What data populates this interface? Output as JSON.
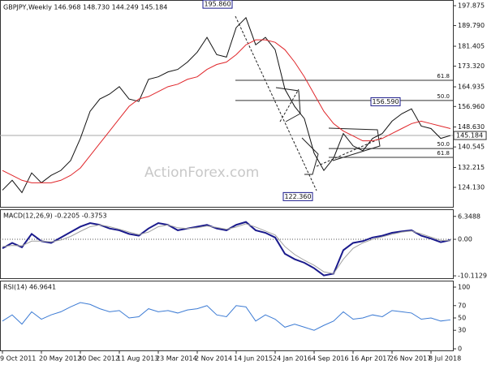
{
  "chart_data": [
    {
      "type": "line",
      "title": "GBPJPY,Weekly  146.968 148.730 144.249 145.184",
      "watermark": "ActionForex.com",
      "ylim": [
        116.23,
        200.18
      ],
      "yticks": [
        197.875,
        {
          "value": 189.79,
          "label": "189.790"
        },
        181.405,
        {
          "value": 173.32,
          "label": "173.320"
        },
        164.935,
        {
          "value": 156.96,
          "label": "156.960"
        },
        {
          "value": 148.63,
          "label": "148.630"
        },
        140.545,
        132.215,
        {
          "value": 124.13,
          "label": "124.130"
        }
      ],
      "current_price": 145.184,
      "series": [
        {
          "color": "#111111",
          "values": [
            123,
            127,
            122,
            130,
            126,
            129,
            131,
            135,
            144,
            155,
            160,
            162,
            165,
            160,
            159,
            168,
            169,
            171,
            172,
            175,
            179,
            185,
            178,
            177,
            189,
            193,
            182,
            185,
            180,
            164,
            157,
            152,
            138,
            131,
            136,
            146,
            141,
            139,
            144,
            146,
            151,
            154,
            156,
            149,
            148,
            144,
            145.184
          ]
        },
        {
          "color": "#e0262a",
          "values": [
            131,
            129,
            127,
            126,
            126,
            126,
            127,
            129,
            132,
            137,
            142,
            147,
            152,
            157,
            160,
            161,
            163,
            165,
            166,
            168,
            169,
            172,
            174,
            175,
            178,
            182,
            184,
            184,
            183,
            180,
            175,
            169,
            162,
            155,
            150,
            147,
            145,
            143,
            143,
            144,
            146,
            148,
            150,
            151,
            150,
            149,
            148
          ]
        }
      ],
      "price_labels": [
        {
          "value": 195.86,
          "label": "195.860"
        },
        {
          "value": 156.59,
          "label": "156.590"
        },
        {
          "value": 122.36,
          "label": "122.360"
        }
      ],
      "fib_levels": [
        {
          "label": "61.8",
          "value": 167.6
        },
        {
          "label": "50.0",
          "value": 159.4
        },
        {
          "label": "50.0",
          "value": 139.9
        },
        {
          "label": "61.8",
          "value": 136.3
        }
      ]
    },
    {
      "type": "line",
      "title": "MACD(12,26,9) -0.2205 -0.3753",
      "ylim": [
        -10.77,
        8.32
      ],
      "yticks": [
        6.3488,
        {
          "value": 0,
          "label": "0.00"
        },
        -10.1129
      ],
      "series": [
        {
          "color": "#1a1a8c",
          "values": [
            -2.5,
            -1,
            -2.2,
            1.5,
            -0.5,
            -1,
            0.5,
            2,
            3.5,
            4.5,
            4,
            3,
            2.5,
            1.5,
            1,
            3,
            4.5,
            4,
            2.5,
            3,
            3.5,
            4,
            3,
            2.5,
            4,
            4.8,
            2.5,
            1.8,
            0.5,
            -4,
            -5.5,
            -6.5,
            -8,
            -10,
            -9.5,
            -3,
            -1,
            -0.5,
            0.5,
            1,
            1.8,
            2.2,
            2.5,
            1,
            0.2,
            -0.8,
            -0.2205
          ]
        },
        {
          "color": "#a0a0a0",
          "values": [
            -2,
            -1.7,
            -1.8,
            -0.5,
            -0.5,
            -0.7,
            -0.2,
            0.8,
            2.2,
            3.5,
            4,
            3.5,
            2.8,
            2,
            1.3,
            2,
            3.5,
            4,
            3.2,
            3,
            3.2,
            3.7,
            3.3,
            2.8,
            3.4,
            4.3,
            3.4,
            2.3,
            1.2,
            -2,
            -4.2,
            -5.8,
            -7.2,
            -9,
            -9.5,
            -5.5,
            -2.5,
            -1,
            0,
            0.7,
            1.4,
            2,
            2.3,
            1.5,
            0.6,
            -0.3,
            -0.3753
          ]
        }
      ]
    },
    {
      "type": "line",
      "title": "RSI(14) 46.9641",
      "ylim": [
        -2.6,
        110.5
      ],
      "yticks": [
        100,
        70,
        50,
        30,
        0
      ],
      "categories": [
        "9 Oct 2011",
        null,
        null,
        null,
        "20 May 2012",
        null,
        null,
        null,
        "30 Dec 2012",
        null,
        null,
        null,
        "11 Aug 2013",
        null,
        null,
        null,
        "23 Mar 2014",
        null,
        null,
        null,
        "2 Nov 2014",
        null,
        null,
        null,
        "14 Jun 2015",
        null,
        null,
        null,
        "24 Jan 2016",
        null,
        null,
        null,
        "4 Sep 2016",
        null,
        null,
        null,
        "16 Apr 2017",
        null,
        null,
        null,
        "26 Nov 2017",
        null,
        null,
        null,
        "8 Jul 2018",
        null,
        null
      ],
      "series": [
        {
          "color": "#3c7bd4",
          "values": [
            45,
            55,
            40,
            60,
            48,
            55,
            60,
            68,
            75,
            72,
            65,
            60,
            62,
            50,
            52,
            65,
            60,
            62,
            58,
            63,
            65,
            70,
            55,
            52,
            70,
            68,
            45,
            55,
            48,
            35,
            40,
            35,
            30,
            38,
            45,
            60,
            48,
            50,
            55,
            52,
            62,
            60,
            58,
            48,
            50,
            45,
            46.9641
          ]
        }
      ]
    }
  ]
}
